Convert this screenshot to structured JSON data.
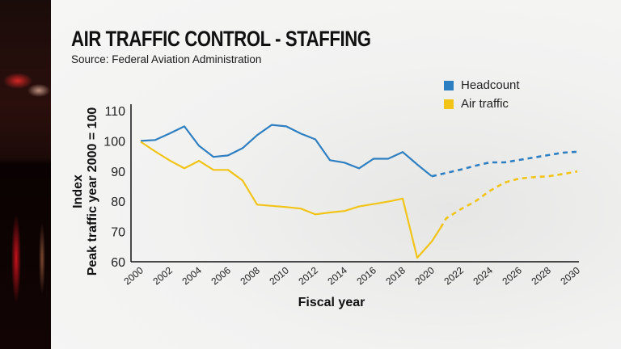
{
  "header": {
    "title": "AIR TRAFFIC CONTROL - STAFFING",
    "source": "Source: Federal Aviation Administration"
  },
  "legend": [
    {
      "label": "Headcount",
      "color": "#2e7fc1"
    },
    {
      "label": "Air traffic",
      "color": "#f2c417"
    }
  ],
  "chart_data": {
    "type": "line",
    "title": "AIR TRAFFIC CONTROL - STAFFING",
    "subtitle": "Source: Federal Aviation Administration",
    "xlabel": "Fiscal year",
    "ylabel_lines": [
      "Index",
      "Peak traffic year 2000 = 100"
    ],
    "ylim": [
      60,
      110
    ],
    "xlim": [
      2000,
      2030
    ],
    "yticks": [
      "60",
      "70",
      "80",
      "90",
      "100",
      "110"
    ],
    "ytick_values": [
      60,
      70,
      80,
      90,
      100,
      110
    ],
    "xticks": [
      "2000",
      "2002",
      "2004",
      "2006",
      "2008",
      "2010",
      "2012",
      "2014",
      "2016",
      "2018",
      "2020",
      "2022",
      "2024",
      "2026",
      "2028",
      "2030"
    ],
    "xtick_values": [
      2000,
      2002,
      2004,
      2006,
      2008,
      2010,
      2012,
      2014,
      2016,
      2018,
      2020,
      2022,
      2024,
      2026,
      2028,
      2030
    ],
    "grid": false,
    "legend_position": "top-right",
    "series": [
      {
        "name": "Headcount",
        "color": "#2e7fc1",
        "actual": {
          "x": [
            2000,
            2001,
            2002,
            2003,
            2004,
            2005,
            2006,
            2007,
            2008,
            2009,
            2010,
            2011,
            2012,
            2013,
            2014,
            2015,
            2016,
            2017,
            2018,
            2019,
            2020
          ],
          "y": [
            100,
            100.3,
            102.5,
            104.8,
            98.4,
            94.7,
            95.2,
            97.6,
            101.9,
            105.3,
            104.8,
            102.4,
            100.5,
            93.6,
            92.8,
            90.9,
            94.1,
            94.1,
            96.3,
            92.2,
            88.3
          ]
        },
        "projected": {
          "x": [
            2020,
            2021,
            2022,
            2023,
            2024,
            2025,
            2026,
            2027,
            2028,
            2029,
            2030
          ],
          "y": [
            88.3,
            89.4,
            90.5,
            91.8,
            92.9,
            92.9,
            93.7,
            94.5,
            95.3,
            96.1,
            96.4
          ]
        }
      },
      {
        "name": "Air traffic",
        "color": "#f2c417",
        "actual": {
          "x": [
            2000,
            2001,
            2002,
            2003,
            2004,
            2005,
            2006,
            2007,
            2008,
            2009,
            2010,
            2011,
            2012,
            2013,
            2014,
            2015,
            2016,
            2017,
            2018,
            2019,
            2020,
            2020.6
          ],
          "y": [
            99.7,
            96.5,
            93.5,
            90.9,
            93.4,
            90.4,
            90.4,
            86.9,
            78.9,
            78.5,
            78.1,
            77.6,
            75.7,
            76.3,
            76.8,
            78.3,
            79.1,
            79.9,
            80.9,
            61.3,
            66.7,
            71.2
          ]
        },
        "projected": {
          "x": [
            2020.6,
            2021,
            2022,
            2023,
            2024,
            2025,
            2026,
            2027,
            2028,
            2029,
            2030
          ],
          "y": [
            71.2,
            74.4,
            77.4,
            80,
            83.5,
            86.2,
            87.5,
            88,
            88.3,
            89,
            89.9
          ]
        }
      }
    ]
  }
}
